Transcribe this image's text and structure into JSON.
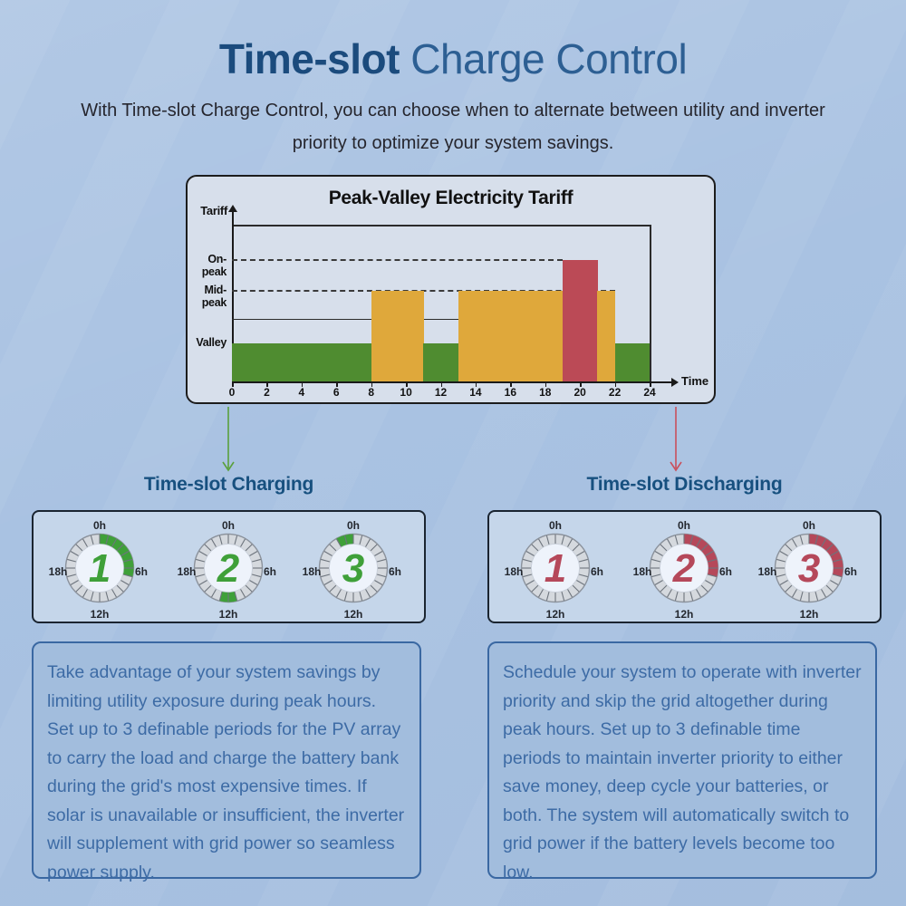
{
  "page": {
    "title_bold": "Time-slot",
    "title_rest": " Charge Control",
    "subtitle": "With Time-slot Charge Control, you can choose when to alternate between utility and inverter priority to optimize your system savings."
  },
  "chart_data": {
    "type": "bar",
    "title": "Peak-Valley Electricity Tariff",
    "xlabel": "Time",
    "ylabel": "Tariff",
    "x_range": [
      0,
      24
    ],
    "x_ticks": [
      0,
      2,
      4,
      6,
      8,
      10,
      12,
      14,
      16,
      18,
      20,
      22,
      24
    ],
    "y_level_labels": [
      "On-peak",
      "Mid-peak",
      "Valley"
    ],
    "grid": "off",
    "segments": [
      {
        "start": 0,
        "end": 8,
        "level": "Valley",
        "color": "green"
      },
      {
        "start": 8,
        "end": 11,
        "level": "Mid-peak",
        "color": "orange"
      },
      {
        "start": 11,
        "end": 13,
        "level": "Valley",
        "color": "green"
      },
      {
        "start": 13,
        "end": 19,
        "level": "Mid-peak",
        "color": "orange"
      },
      {
        "start": 19,
        "end": 21,
        "level": "On-peak",
        "color": "red"
      },
      {
        "start": 21,
        "end": 22,
        "level": "Mid-peak",
        "color": "orange"
      },
      {
        "start": 22,
        "end": 24,
        "level": "Valley",
        "color": "green"
      }
    ],
    "guide_lines": [
      {
        "level": "On-peak",
        "style": "dashed",
        "from": 0,
        "to": 19
      },
      {
        "level": "Mid-peak",
        "style": "dashed",
        "from": 0,
        "to": 22
      },
      {
        "level": "sub-mid",
        "style": "solid",
        "from": 0,
        "to": 13
      }
    ],
    "colors": {
      "green": "#4f8c30",
      "orange": "#dfa83b",
      "red": "#bb4a56"
    }
  },
  "charging": {
    "header": "Time-slot Charging",
    "accent": "#3fa039",
    "arrow_color": "#5aa03d",
    "dial_labels": {
      "top": "0h",
      "right": "6h",
      "bottom": "12h",
      "left": "18h"
    },
    "dials": [
      {
        "number": "1",
        "arc_start_h": 0,
        "arc_end_h": 7
      },
      {
        "number": "2",
        "arc_start_h": 11,
        "arc_end_h": 13
      },
      {
        "number": "3",
        "arc_start_h": 22,
        "arc_end_h": 24
      }
    ],
    "description": "Take advantage of your system savings by limiting utility exposure during peak hours. Set up to 3 definable periods for the PV array to carry the load and charge the battery bank during the grid's most expensive times. If solar is unavailable or insufficient, the inverter will supplement with grid power so seamless power supply."
  },
  "discharging": {
    "header": "Time-slot Discharging",
    "accent": "#b5485a",
    "arrow_color": "#c9505c",
    "dial_labels": {
      "top": "0h",
      "right": "6h",
      "bottom": "12h",
      "left": "18h"
    },
    "dials": [
      {
        "number": "1",
        "arc_start_h": 0,
        "arc_end_h": 0
      },
      {
        "number": "2",
        "arc_start_h": 0,
        "arc_end_h": 7
      },
      {
        "number": "3",
        "arc_start_h": 0,
        "arc_end_h": 7
      }
    ],
    "description": "Schedule your system to operate with inverter priority and skip the grid altogether during peak hours. Set up to 3 definable time periods to maintain inverter priority to either save money, deep cycle your batteries, or both. The system will automatically switch to grid power if the battery levels become too low."
  }
}
